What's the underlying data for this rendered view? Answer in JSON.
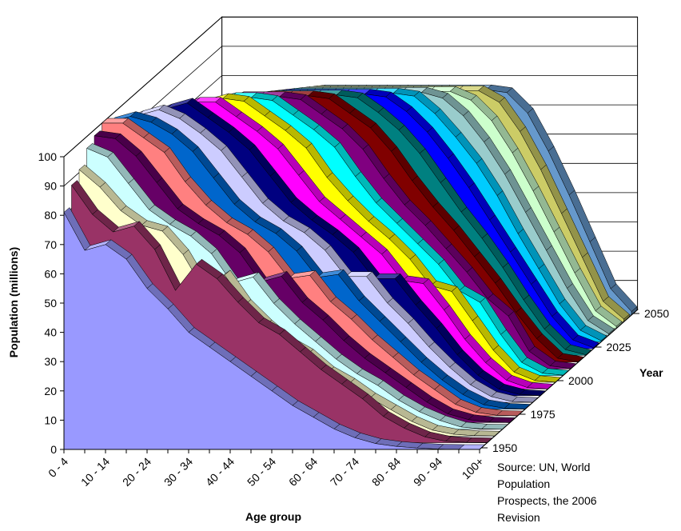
{
  "chart_data": {
    "type": "area",
    "ylabel": "Population (millions)",
    "xlabel": "Age group",
    "zlabel": "Year",
    "ylim": [
      0,
      100
    ],
    "y_ticks": [
      "0",
      "10",
      "20",
      "30",
      "40",
      "50",
      "60",
      "70",
      "80",
      "90",
      "100"
    ],
    "x_tick_labels": [
      "0 - 4",
      "10 - 14",
      "20 - 24",
      "30 - 34",
      "40 - 44",
      "50 - 54",
      "60 - 64",
      "70 - 74",
      "80 - 84",
      "90 - 94",
      "100+"
    ],
    "categories": [
      "0 - 4",
      "5 - 9",
      "10 - 14",
      "15 - 19",
      "20 - 24",
      "25 - 29",
      "30 - 34",
      "35 - 39",
      "40 - 44",
      "45 - 49",
      "50 - 54",
      "55 - 59",
      "60 - 64",
      "65 - 69",
      "70 - 74",
      "75 - 79",
      "80 - 84",
      "85 - 89",
      "90 - 94",
      "95 - 99",
      "100+"
    ],
    "z_tick_labels": [
      "1950",
      "1975",
      "2000",
      "2025",
      "2050"
    ],
    "series": [
      {
        "name": "1950",
        "color": "#9999ff",
        "values": [
          81,
          68,
          70,
          65,
          55,
          48,
          40,
          35,
          30,
          25,
          20,
          15,
          11,
          7,
          4,
          2,
          1,
          0.5,
          0.1,
          0,
          0
        ]
      },
      {
        "name": "1955",
        "color": "#993366",
        "values": [
          88,
          78,
          72,
          74,
          66,
          52,
          61,
          56,
          48,
          41,
          37,
          31,
          25,
          20,
          15,
          9,
          5,
          2,
          0.5,
          0.1,
          0
        ]
      },
      {
        "name": "1960",
        "color": "#ffffcc",
        "values": [
          91,
          85,
          77,
          72,
          70,
          62,
          50,
          55,
          45,
          38,
          32,
          28,
          22,
          18,
          13,
          9,
          5,
          2,
          0.6,
          0.1,
          0
        ]
      },
      {
        "name": "1965",
        "color": "#ccffff",
        "values": [
          96,
          93,
          84,
          75,
          70,
          66,
          60,
          50,
          52,
          43,
          36,
          30,
          24,
          19,
          15,
          10,
          6,
          3,
          0.8,
          0.1,
          0
        ]
      },
      {
        "name": "1970",
        "color": "#660066",
        "values": [
          98,
          97,
          91,
          82,
          73,
          68,
          64,
          58,
          48,
          50,
          41,
          35,
          28,
          22,
          17,
          12,
          7,
          3,
          1,
          0.2,
          0
        ]
      },
      {
        "name": "1975",
        "color": "#ff8080",
        "values": [
          100,
          100,
          95,
          90,
          80,
          72,
          66,
          62,
          56,
          47,
          48,
          39,
          33,
          26,
          20,
          14,
          9,
          4,
          1.2,
          0.2,
          0
        ]
      },
      {
        "name": "1980",
        "color": "#0066cc",
        "values": [
          98,
          100,
          98,
          94,
          88,
          79,
          70,
          64,
          60,
          54,
          45,
          46,
          37,
          30,
          23,
          16,
          10,
          5,
          1.5,
          0.3,
          0
        ]
      },
      {
        "name": "1985",
        "color": "#ccccff",
        "values": [
          95,
          98,
          100,
          97,
          92,
          86,
          77,
          68,
          62,
          58,
          52,
          43,
          43,
          34,
          27,
          19,
          12,
          6,
          2,
          0.3,
          0
        ]
      },
      {
        "name": "1990",
        "color": "#000080",
        "values": [
          93,
          95,
          98,
          100,
          95,
          90,
          84,
          75,
          66,
          60,
          55,
          49,
          40,
          40,
          31,
          23,
          14,
          7,
          2.3,
          0.4,
          0
        ]
      },
      {
        "name": "1995",
        "color": "#ff00ff",
        "values": [
          90,
          93,
          95,
          98,
          98,
          93,
          88,
          82,
          73,
          64,
          58,
          52,
          46,
          37,
          36,
          27,
          17,
          9,
          3,
          0.5,
          0
        ]
      },
      {
        "name": "2000",
        "color": "#ffff00",
        "values": [
          88,
          90,
          93,
          95,
          97,
          96,
          91,
          86,
          80,
          70,
          62,
          55,
          49,
          42,
          33,
          31,
          21,
          11,
          3.5,
          0.6,
          0
        ]
      },
      {
        "name": "2005",
        "color": "#00ffff",
        "values": [
          86,
          88,
          90,
          93,
          95,
          95,
          94,
          89,
          84,
          78,
          68,
          59,
          52,
          45,
          38,
          29,
          25,
          14,
          4.5,
          0.8,
          0.1
        ]
      },
      {
        "name": "2010",
        "color": "#800080",
        "values": [
          84,
          86,
          88,
          90,
          93,
          93,
          93,
          92,
          87,
          82,
          75,
          65,
          56,
          49,
          41,
          33,
          24,
          18,
          6,
          1,
          0.1
        ]
      },
      {
        "name": "2015",
        "color": "#800000",
        "values": [
          82,
          84,
          86,
          88,
          90,
          91,
          91,
          91,
          90,
          85,
          80,
          72,
          62,
          53,
          45,
          36,
          27,
          17,
          8,
          1.3,
          0.1
        ]
      },
      {
        "name": "2020",
        "color": "#008080",
        "values": [
          80,
          82,
          84,
          86,
          88,
          89,
          89,
          89,
          89,
          88,
          83,
          77,
          69,
          59,
          49,
          40,
          30,
          19,
          9,
          2,
          0.2
        ]
      },
      {
        "name": "2025",
        "color": "#0000ff",
        "values": [
          78,
          80,
          82,
          84,
          86,
          87,
          87,
          87,
          87,
          87,
          86,
          81,
          74,
          65,
          55,
          44,
          33,
          22,
          11,
          3,
          0.3
        ]
      },
      {
        "name": "2030",
        "color": "#00ccff",
        "values": [
          76,
          78,
          80,
          82,
          84,
          85,
          85,
          85,
          85,
          85,
          85,
          84,
          78,
          70,
          61,
          50,
          37,
          25,
          13,
          4,
          0.4
        ]
      },
      {
        "name": "2035",
        "color": "#99cccc",
        "values": [
          75,
          76,
          78,
          80,
          82,
          83,
          83,
          83,
          83,
          83,
          83,
          83,
          81,
          75,
          66,
          55,
          42,
          29,
          16,
          5,
          0.5
        ]
      },
      {
        "name": "2040",
        "color": "#ccffcc",
        "values": [
          74,
          75,
          76,
          78,
          80,
          81,
          81,
          81,
          81,
          81,
          81,
          81,
          81,
          78,
          71,
          60,
          47,
          33,
          19,
          6,
          0.7
        ]
      },
      {
        "name": "2045",
        "color": "#cccc66",
        "values": [
          73,
          74,
          75,
          76,
          78,
          79,
          79,
          79,
          79,
          79,
          79,
          79,
          79,
          79,
          75,
          65,
          52,
          37,
          22,
          7,
          0.9
        ]
      },
      {
        "name": "2050",
        "color": "#6699cc",
        "values": [
          72,
          73,
          74,
          75,
          76,
          77,
          77,
          77,
          77,
          77,
          77,
          77,
          77,
          77,
          76,
          69,
          56,
          41,
          25,
          9,
          1.2
        ]
      }
    ]
  },
  "source_note": [
    "Source: UN, World",
    "Population",
    "Prospects, the 2006",
    "Revision"
  ]
}
